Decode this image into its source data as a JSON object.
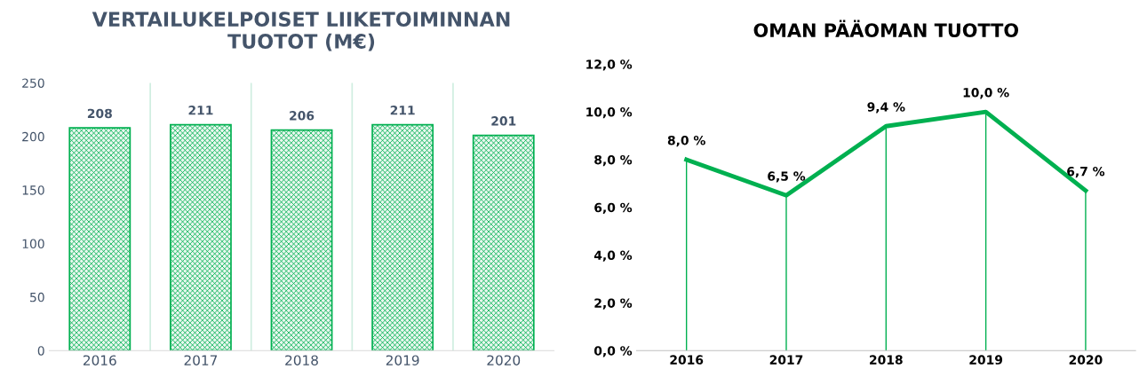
{
  "chart_data": [
    {
      "type": "bar",
      "title": "VERTAILUKELPOISET LIIKETOIMINNAN\nTUOTOT (M€)",
      "categories": [
        "2016",
        "2017",
        "2018",
        "2019",
        "2020"
      ],
      "series": [
        {
          "color": "#00b050",
          "values": [
            208,
            211,
            206,
            211,
            201
          ]
        }
      ],
      "ylim": [
        0,
        250
      ],
      "yticks": [
        0,
        50,
        100,
        150,
        200,
        250
      ],
      "grid": "x",
      "data_labels": true
    },
    {
      "type": "line",
      "title": "OMAN PÄÄOMAN TUOTTO",
      "categories": [
        "2016",
        "2017",
        "2018",
        "2019",
        "2020"
      ],
      "series": [
        {
          "color": "#00b050",
          "values": [
            8.0,
            6.5,
            9.4,
            10.0,
            6.7
          ],
          "value_labels": [
            "8,0 %",
            "6,5 %",
            "9,4 %",
            "10,0 %",
            "6,7 %"
          ]
        }
      ],
      "ylim": [
        0,
        12
      ],
      "yticks": [
        {
          "value": 0,
          "label": "0,0 %"
        },
        {
          "value": 2,
          "label": "2,0 %"
        },
        {
          "value": 4,
          "label": "4,0 %"
        },
        {
          "value": 6,
          "label": "6,0 %"
        },
        {
          "value": 8,
          "label": "8,0 %"
        },
        {
          "value": 10,
          "label": "10,0 %"
        },
        {
          "value": 12,
          "label": "12,0 %"
        }
      ],
      "grid": "x",
      "marker": "none",
      "line_style": "solid"
    }
  ]
}
